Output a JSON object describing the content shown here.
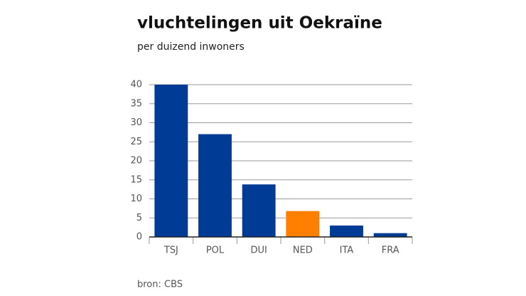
{
  "chart_data": {
    "type": "bar",
    "title": "vluchtelingen uit Oekraïne",
    "subtitle": "per duizend inwoners",
    "categories": [
      "TSJ",
      "POL",
      "DUI",
      "NED",
      "ITA",
      "FRA"
    ],
    "values": [
      40,
      27,
      13.8,
      6.8,
      3,
      1
    ],
    "colors": [
      "#003c96",
      "#003c96",
      "#003c96",
      "#ff7f00",
      "#003c96",
      "#003c96"
    ],
    "ylim": [
      0,
      40
    ],
    "yticks": [
      0,
      5,
      10,
      15,
      20,
      25,
      30,
      35,
      40
    ],
    "grid": true,
    "source": "bron: CBS"
  }
}
